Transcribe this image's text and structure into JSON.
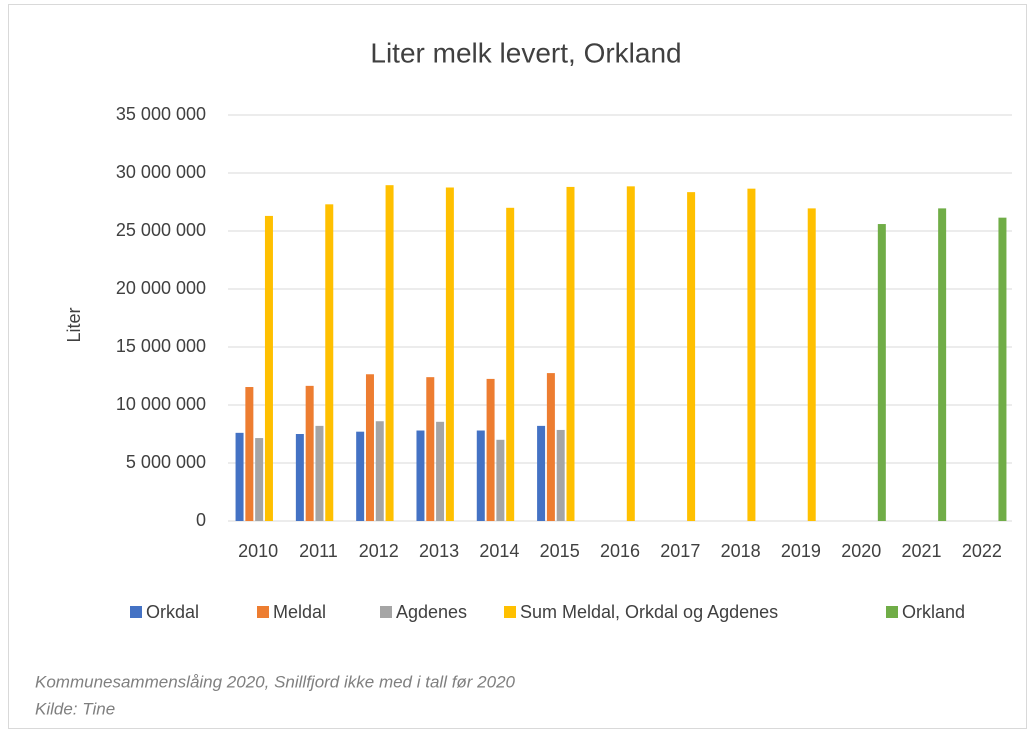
{
  "chart_data": {
    "type": "bar",
    "title": "Liter melk levert, Orkland",
    "y_label": "Liter",
    "categories": [
      "2010",
      "2011",
      "2012",
      "2013",
      "2014",
      "2015",
      "2016",
      "2017",
      "2018",
      "2019",
      "2020",
      "2021",
      "2022"
    ],
    "series": [
      {
        "name": "Orkdal",
        "color": "#4472c4",
        "values": [
          7600000,
          7500000,
          7700000,
          7800000,
          7800000,
          8200000,
          null,
          null,
          null,
          null,
          null,
          null,
          null
        ]
      },
      {
        "name": "Meldal",
        "color": "#ed7d31",
        "values": [
          11550000,
          11650000,
          12650000,
          12400000,
          12250000,
          12750000,
          null,
          null,
          null,
          null,
          null,
          null,
          null
        ]
      },
      {
        "name": "Agdenes",
        "color": "#a5a5a5",
        "values": [
          7150000,
          8200000,
          8600000,
          8550000,
          7000000,
          7850000,
          null,
          null,
          null,
          null,
          null,
          null,
          null
        ]
      },
      {
        "name": "Sum Meldal, Orkdal og Agdenes",
        "color": "#ffc000",
        "values": [
          26300000,
          27300000,
          28950000,
          28750000,
          27000000,
          28800000,
          28850000,
          28350000,
          28650000,
          26950000,
          null,
          null,
          null
        ]
      },
      {
        "name": "Orkland",
        "color": "#70ad47",
        "values": [
          null,
          null,
          null,
          null,
          null,
          null,
          null,
          null,
          null,
          null,
          25600000,
          26950000,
          26150000
        ]
      }
    ],
    "ylim": [
      0,
      35000000
    ],
    "yticks": [
      0,
      {
        "value": 5000000,
        "label": "5 000 000"
      },
      {
        "value": 10000000,
        "label": "10 000 000"
      },
      {
        "value": 15000000,
        "label": "15 000 000"
      },
      {
        "value": 20000000,
        "label": "20 000 000"
      },
      {
        "value": 25000000,
        "label": "25 000 000"
      },
      {
        "value": 30000000,
        "label": "30 000 000"
      },
      {
        "value": 35000000,
        "label": "35 000 000"
      }
    ],
    "grid": true,
    "legend": "bottom",
    "notes": [
      "Kommunesammenslåing 2020, Snillfjord ikke med i tall før 2020",
      "Kilde: Tine"
    ]
  }
}
